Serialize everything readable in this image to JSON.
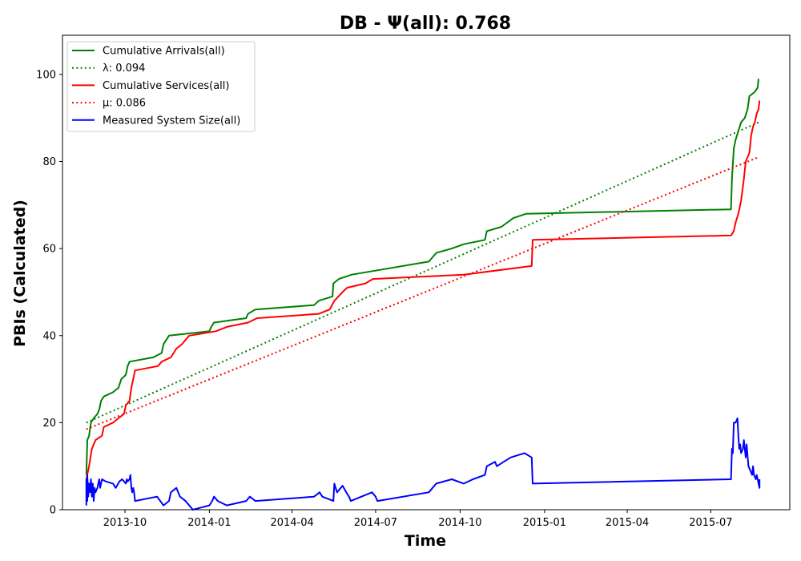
{
  "chart_data": {
    "type": "line",
    "title": "DB -  Ψ(all): 0.768",
    "xlabel": "Time",
    "ylabel": "PBIs (Calculated)",
    "xlim": [
      "2013-07-25",
      "2015-09-25"
    ],
    "ylim": [
      0,
      109
    ],
    "yticks": [
      0,
      20,
      40,
      60,
      80,
      100
    ],
    "xticks": [
      {
        "date": "2013-10-01",
        "label": "2013-10"
      },
      {
        "date": "2014-01-01",
        "label": "2014-01"
      },
      {
        "date": "2014-04-01",
        "label": "2014-04"
      },
      {
        "date": "2014-07-01",
        "label": "2014-07"
      },
      {
        "date": "2014-10-01",
        "label": "2014-10"
      },
      {
        "date": "2015-01-01",
        "label": "2015-01"
      },
      {
        "date": "2015-04-01",
        "label": "2015-04"
      },
      {
        "date": "2015-07-01",
        "label": "2015-07"
      }
    ],
    "grid": false,
    "legend_position": "top-left",
    "series": [
      {
        "name": "Cumulative Arrivals(all)",
        "color": "#008000",
        "style": "solid",
        "points": [
          [
            "2013-08-20",
            8
          ],
          [
            "2013-08-21",
            16
          ],
          [
            "2013-08-23",
            17
          ],
          [
            "2013-08-25",
            20
          ],
          [
            "2013-08-28",
            21
          ],
          [
            "2013-09-01",
            22
          ],
          [
            "2013-09-03",
            23
          ],
          [
            "2013-09-05",
            25
          ],
          [
            "2013-09-08",
            26
          ],
          [
            "2013-09-18",
            27
          ],
          [
            "2013-09-24",
            28
          ],
          [
            "2013-09-27",
            30
          ],
          [
            "2013-10-02",
            31
          ],
          [
            "2013-10-04",
            33
          ],
          [
            "2013-10-06",
            34
          ],
          [
            "2013-11-01",
            35
          ],
          [
            "2013-11-10",
            36
          ],
          [
            "2013-11-12",
            38
          ],
          [
            "2013-11-15",
            39
          ],
          [
            "2013-11-18",
            40
          ],
          [
            "2014-01-01",
            41
          ],
          [
            "2014-01-03",
            42
          ],
          [
            "2014-01-06",
            43
          ],
          [
            "2014-02-10",
            44
          ],
          [
            "2014-02-12",
            45
          ],
          [
            "2014-02-20",
            46
          ],
          [
            "2014-04-25",
            47
          ],
          [
            "2014-04-30",
            48
          ],
          [
            "2014-05-15",
            49
          ],
          [
            "2014-05-16",
            52
          ],
          [
            "2014-05-22",
            53
          ],
          [
            "2014-06-05",
            54
          ],
          [
            "2014-08-28",
            57
          ],
          [
            "2014-09-01",
            58
          ],
          [
            "2014-09-05",
            59
          ],
          [
            "2014-09-22",
            60
          ],
          [
            "2014-10-05",
            61
          ],
          [
            "2014-10-28",
            62
          ],
          [
            "2014-10-30",
            64
          ],
          [
            "2014-11-15",
            65
          ],
          [
            "2014-11-28",
            67
          ],
          [
            "2014-12-12",
            68
          ],
          [
            "2015-07-23",
            69
          ],
          [
            "2015-07-24",
            76
          ],
          [
            "2015-07-26",
            83
          ],
          [
            "2015-07-28",
            85
          ],
          [
            "2015-07-31",
            87
          ],
          [
            "2015-08-03",
            89
          ],
          [
            "2015-08-07",
            90
          ],
          [
            "2015-08-10",
            92
          ],
          [
            "2015-08-12",
            95
          ],
          [
            "2015-08-18",
            96
          ],
          [
            "2015-08-21",
            97
          ],
          [
            "2015-08-22",
            99
          ]
        ]
      },
      {
        "name": "λ: 0.094",
        "color": "#008000",
        "style": "dotted",
        "points": [
          [
            "2013-08-20",
            20
          ],
          [
            "2015-08-22",
            89
          ]
        ]
      },
      {
        "name": "Cumulative Services(all)",
        "color": "#ff0000",
        "style": "solid",
        "points": [
          [
            "2013-08-20",
            7
          ],
          [
            "2013-08-23",
            10
          ],
          [
            "2013-08-26",
            14
          ],
          [
            "2013-08-30",
            16
          ],
          [
            "2013-09-06",
            17
          ],
          [
            "2013-09-08",
            19
          ],
          [
            "2013-09-18",
            20
          ],
          [
            "2013-09-24",
            21
          ],
          [
            "2013-09-30",
            22
          ],
          [
            "2013-10-02",
            24
          ],
          [
            "2013-10-06",
            25
          ],
          [
            "2013-10-08",
            28
          ],
          [
            "2013-10-12",
            32
          ],
          [
            "2013-11-06",
            33
          ],
          [
            "2013-11-10",
            34
          ],
          [
            "2013-11-20",
            35
          ],
          [
            "2013-11-26",
            37
          ],
          [
            "2013-12-02",
            38
          ],
          [
            "2013-12-10",
            40
          ],
          [
            "2014-01-08",
            41
          ],
          [
            "2014-01-20",
            42
          ],
          [
            "2014-02-12",
            43
          ],
          [
            "2014-02-22",
            44
          ],
          [
            "2014-04-30",
            45
          ],
          [
            "2014-05-12",
            46
          ],
          [
            "2014-05-17",
            48
          ],
          [
            "2014-05-26",
            50
          ],
          [
            "2014-05-31",
            51
          ],
          [
            "2014-06-20",
            52
          ],
          [
            "2014-06-28",
            53
          ],
          [
            "2014-10-05",
            54
          ],
          [
            "2014-12-18",
            56
          ],
          [
            "2014-12-19",
            62
          ],
          [
            "2015-07-23",
            63
          ],
          [
            "2015-07-26",
            64
          ],
          [
            "2015-07-28",
            66
          ],
          [
            "2015-07-31",
            68
          ],
          [
            "2015-08-03",
            71
          ],
          [
            "2015-08-06",
            76
          ],
          [
            "2015-08-08",
            80
          ],
          [
            "2015-08-10",
            81
          ],
          [
            "2015-08-12",
            82
          ],
          [
            "2015-08-14",
            86
          ],
          [
            "2015-08-16",
            88
          ],
          [
            "2015-08-18",
            89
          ],
          [
            "2015-08-20",
            91
          ],
          [
            "2015-08-22",
            92
          ],
          [
            "2015-08-23",
            94
          ]
        ]
      },
      {
        "name": "μ: 0.086",
        "color": "#ff0000",
        "style": "dotted",
        "points": [
          [
            "2013-08-20",
            18.5
          ],
          [
            "2015-08-22",
            81
          ]
        ]
      },
      {
        "name": "Measured System Size(all)",
        "color": "#0000ff",
        "style": "solid",
        "points": [
          [
            "2013-08-20",
            1
          ],
          [
            "2013-08-20",
            7
          ],
          [
            "2013-08-21",
            2
          ],
          [
            "2013-08-21",
            8
          ],
          [
            "2013-08-22",
            3
          ],
          [
            "2013-08-23",
            6
          ],
          [
            "2013-08-24",
            4
          ],
          [
            "2013-08-25",
            7
          ],
          [
            "2013-08-26",
            3
          ],
          [
            "2013-08-27",
            6
          ],
          [
            "2013-08-28",
            2
          ],
          [
            "2013-08-29",
            5
          ],
          [
            "2013-08-30",
            4
          ],
          [
            "2013-09-01",
            5
          ],
          [
            "2013-09-02",
            6
          ],
          [
            "2013-09-03",
            7
          ],
          [
            "2013-09-04",
            5
          ],
          [
            "2013-09-06",
            7
          ],
          [
            "2013-09-10",
            6.5
          ],
          [
            "2013-09-18",
            6
          ],
          [
            "2013-09-21",
            5
          ],
          [
            "2013-09-25",
            6.5
          ],
          [
            "2013-09-28",
            7
          ],
          [
            "2013-10-02",
            6
          ],
          [
            "2013-10-03",
            7
          ],
          [
            "2013-10-04",
            6.5
          ],
          [
            "2013-10-06",
            7
          ],
          [
            "2013-10-07",
            8
          ],
          [
            "2013-10-08",
            5
          ],
          [
            "2013-10-09",
            4
          ],
          [
            "2013-10-10",
            5
          ],
          [
            "2013-10-11",
            4
          ],
          [
            "2013-10-12",
            2
          ],
          [
            "2013-11-05",
            3
          ],
          [
            "2013-11-12",
            1
          ],
          [
            "2013-11-18",
            2
          ],
          [
            "2013-11-20",
            4
          ],
          [
            "2013-11-26",
            5
          ],
          [
            "2013-11-30",
            3
          ],
          [
            "2013-12-06",
            2
          ],
          [
            "2013-12-14",
            0
          ],
          [
            "2014-01-01",
            1
          ],
          [
            "2014-01-04",
            2
          ],
          [
            "2014-01-06",
            3
          ],
          [
            "2014-01-10",
            2
          ],
          [
            "2014-01-20",
            1
          ],
          [
            "2014-02-10",
            2
          ],
          [
            "2014-02-14",
            3
          ],
          [
            "2014-02-20",
            2
          ],
          [
            "2014-04-25",
            3
          ],
          [
            "2014-05-01",
            4
          ],
          [
            "2014-05-04",
            3
          ],
          [
            "2014-05-16",
            2
          ],
          [
            "2014-05-17",
            6
          ],
          [
            "2014-05-20",
            4
          ],
          [
            "2014-05-24",
            5
          ],
          [
            "2014-05-26",
            5.5
          ],
          [
            "2014-05-30",
            4
          ],
          [
            "2014-06-02",
            3
          ],
          [
            "2014-06-04",
            2
          ],
          [
            "2014-06-27",
            4
          ],
          [
            "2014-07-01",
            3
          ],
          [
            "2014-07-03",
            2
          ],
          [
            "2014-08-28",
            4
          ],
          [
            "2014-09-01",
            5
          ],
          [
            "2014-09-05",
            6
          ],
          [
            "2014-09-22",
            7
          ],
          [
            "2014-10-05",
            6
          ],
          [
            "2014-10-15",
            7
          ],
          [
            "2014-10-28",
            8
          ],
          [
            "2014-10-30",
            10
          ],
          [
            "2014-11-08",
            11
          ],
          [
            "2014-11-10",
            10
          ],
          [
            "2014-11-25",
            12
          ],
          [
            "2014-12-10",
            13
          ],
          [
            "2014-12-18",
            12
          ],
          [
            "2014-12-19",
            6
          ],
          [
            "2015-07-23",
            7
          ],
          [
            "2015-07-24",
            14
          ],
          [
            "2015-07-25",
            13
          ],
          [
            "2015-07-26",
            20
          ],
          [
            "2015-07-28",
            20
          ],
          [
            "2015-07-30",
            21
          ],
          [
            "2015-07-31",
            17
          ],
          [
            "2015-08-01",
            14
          ],
          [
            "2015-08-02",
            15
          ],
          [
            "2015-08-03",
            13
          ],
          [
            "2015-08-05",
            14
          ],
          [
            "2015-08-06",
            16
          ],
          [
            "2015-08-08",
            12
          ],
          [
            "2015-08-09",
            15
          ],
          [
            "2015-08-11",
            10
          ],
          [
            "2015-08-13",
            9
          ],
          [
            "2015-08-15",
            8
          ],
          [
            "2015-08-16",
            10
          ],
          [
            "2015-08-17",
            8
          ],
          [
            "2015-08-19",
            7
          ],
          [
            "2015-08-20",
            8
          ],
          [
            "2015-08-21",
            7
          ],
          [
            "2015-08-22",
            6
          ],
          [
            "2015-08-23",
            5
          ],
          [
            "2015-08-23",
            7
          ]
        ]
      }
    ]
  }
}
